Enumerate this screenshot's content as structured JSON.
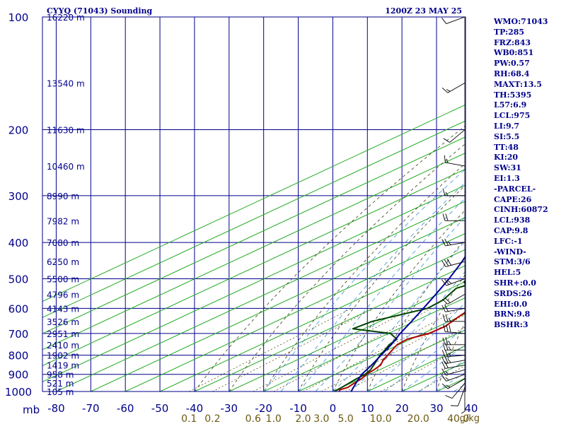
{
  "title_left": "CYYQ (71043) Sounding",
  "title_right": "1200Z 23 MAY 25",
  "chart_data": {
    "type": "skew-t",
    "y_axis": {
      "label": "mb",
      "scale": "log",
      "range": [
        1000,
        100
      ],
      "ticks": [
        "100",
        "200",
        "300",
        "400",
        "500",
        "600",
        "700",
        "800",
        "900",
        "1000"
      ]
    },
    "x_axis": {
      "label": "",
      "range": [
        -80,
        40
      ],
      "ticks": [
        "-80",
        "-70",
        "-60",
        "-50",
        "-40",
        "-30",
        "-20",
        "-10",
        "0",
        "10",
        "20",
        "30",
        "40"
      ]
    },
    "mixing_ratio_labels": [
      "0.1",
      "0.2",
      "0.6",
      "1.0",
      "2.0",
      "3.0",
      "5.0",
      "10.0",
      "20.0",
      "40.0"
    ],
    "mixing_ratio_unit": "g/kg",
    "height_labels": [
      {
        "p": 100,
        "label": "16220 m"
      },
      {
        "p": 150,
        "label": "13540 m"
      },
      {
        "p": 200,
        "label": "11630 m"
      },
      {
        "p": 250,
        "label": "10460 m"
      },
      {
        "p": 300,
        "label": "8990 m"
      },
      {
        "p": 350,
        "label": "7982 m"
      },
      {
        "p": 400,
        "label": "7080 m"
      },
      {
        "p": 450,
        "label": "6250 m"
      },
      {
        "p": 500,
        "label": "5500 m"
      },
      {
        "p": 550,
        "label": "4796 m"
      },
      {
        "p": 600,
        "label": "4143 m"
      },
      {
        "p": 650,
        "label": "3526 m"
      },
      {
        "p": 700,
        "label": "2951 m"
      },
      {
        "p": 750,
        "label": "2410 m"
      },
      {
        "p": 800,
        "label": "1902 m"
      },
      {
        "p": 850,
        "label": "1419 m"
      },
      {
        "p": 900,
        "label": "958 m"
      },
      {
        "p": 950,
        "label": "521 m"
      },
      {
        "p": 1000,
        "label": "105 m"
      }
    ],
    "series": [
      {
        "key": "temperature",
        "color": "#b00000",
        "points": [
          [
            1000,
            1.8
          ],
          [
            990,
            1.0
          ],
          [
            975,
            1.8
          ],
          [
            950,
            1.0
          ],
          [
            925,
            0.4
          ],
          [
            900,
            -0.9
          ],
          [
            875,
            -1.6
          ],
          [
            850,
            -2.6
          ],
          [
            825,
            -4.9
          ],
          [
            800,
            -6.7
          ],
          [
            775,
            -8.6
          ],
          [
            750,
            -10.5
          ],
          [
            725,
            -11.0
          ],
          [
            700,
            -8.3
          ],
          [
            670,
            -8.0
          ],
          [
            630,
            -10.2
          ],
          [
            600,
            -11.7
          ],
          [
            550,
            -15.0
          ],
          [
            500,
            -19.4
          ],
          [
            450,
            -24.1
          ],
          [
            400,
            -29.7
          ],
          [
            350,
            -36.3
          ],
          [
            300,
            -44.8
          ],
          [
            275,
            -48.2
          ],
          [
            260,
            -48.2
          ],
          [
            240,
            -49.6
          ],
          [
            225,
            -50.5
          ],
          [
            200,
            -51.7
          ],
          [
            180,
            -52.0
          ],
          [
            160,
            -47.9
          ],
          [
            100,
            -52.7
          ]
        ]
      },
      {
        "key": "dewpoint",
        "color": "#004400",
        "points": [
          [
            1000,
            0.5
          ],
          [
            975,
            0.0
          ],
          [
            950,
            -0.5
          ],
          [
            925,
            -1.1
          ],
          [
            900,
            -1.3
          ],
          [
            875,
            -2.6
          ],
          [
            850,
            -4.6
          ],
          [
            825,
            -6.7
          ],
          [
            800,
            -8.9
          ],
          [
            775,
            -10.7
          ],
          [
            750,
            -12.8
          ],
          [
            725,
            -14.0
          ],
          [
            700,
            -19.4
          ],
          [
            680,
            -33.2
          ],
          [
            650,
            -32.2
          ],
          [
            600,
            -24.3
          ],
          [
            570,
            -25.0
          ],
          [
            530,
            -28.5
          ],
          [
            520,
            -27.5
          ],
          [
            510,
            -30.2
          ],
          [
            500,
            -31.1
          ],
          [
            480,
            -33.0
          ],
          [
            455,
            -33.6
          ],
          [
            430,
            -41.7
          ],
          [
            400,
            -41.0
          ],
          [
            375,
            -45.5
          ],
          [
            350,
            -47.4
          ],
          [
            325,
            -50.1
          ],
          [
            300,
            -53.7
          ],
          [
            275,
            -57.5
          ],
          [
            265,
            -58.2
          ],
          [
            255,
            -63.1
          ],
          [
            240,
            -64.9
          ],
          [
            225,
            -70.0
          ],
          [
            200,
            -79.0
          ]
        ]
      },
      {
        "key": "parcel",
        "color": "#000099",
        "points": [
          [
            1000,
            5.3
          ],
          [
            950,
            1.5
          ],
          [
            900,
            -2.3
          ],
          [
            850,
            -5.2
          ],
          [
            800,
            -8.6
          ],
          [
            750,
            -12.2
          ],
          [
            700,
            -16.6
          ],
          [
            650,
            -20.8
          ],
          [
            600,
            -25.5
          ],
          [
            550,
            -30.7
          ],
          [
            500,
            -36.5
          ],
          [
            450,
            -43.4
          ],
          [
            400,
            -51.7
          ],
          [
            350,
            -61.1
          ],
          [
            300,
            -71.7
          ],
          [
            250,
            -84.0
          ]
        ]
      }
    ],
    "wind_barbs": [
      {
        "p": 1000,
        "dir": 180,
        "spd": 5
      },
      {
        "p": 975,
        "dir": 200,
        "spd": 10
      },
      {
        "p": 950,
        "dir": 220,
        "spd": 10
      },
      {
        "p": 925,
        "dir": 240,
        "spd": 15
      },
      {
        "p": 900,
        "dir": 250,
        "spd": 15
      },
      {
        "p": 875,
        "dir": 255,
        "spd": 15
      },
      {
        "p": 850,
        "dir": 260,
        "spd": 20
      },
      {
        "p": 825,
        "dir": 260,
        "spd": 25
      },
      {
        "p": 800,
        "dir": 265,
        "spd": 25
      },
      {
        "p": 775,
        "dir": 270,
        "spd": 25
      },
      {
        "p": 750,
        "dir": 270,
        "spd": 25
      },
      {
        "p": 700,
        "dir": 275,
        "spd": 30
      },
      {
        "p": 650,
        "dir": 270,
        "spd": 25
      },
      {
        "p": 600,
        "dir": 260,
        "spd": 20
      },
      {
        "p": 550,
        "dir": 240,
        "spd": 20
      },
      {
        "p": 500,
        "dir": 250,
        "spd": 25
      },
      {
        "p": 450,
        "dir": 255,
        "spd": 30
      },
      {
        "p": 400,
        "dir": 260,
        "spd": 25
      },
      {
        "p": 350,
        "dir": 270,
        "spd": 20
      },
      {
        "p": 300,
        "dir": 270,
        "spd": 15
      },
      {
        "p": 250,
        "dir": 280,
        "spd": 15
      },
      {
        "p": 200,
        "dir": 230,
        "spd": 10
      },
      {
        "p": 150,
        "dir": 240,
        "spd": 15
      },
      {
        "p": 100,
        "dir": 250,
        "spd": 10
      }
    ]
  },
  "indices": [
    "WMO:71043",
    "TP:285",
    "FRZ:843",
    "WB0:851",
    "PW:0.57",
    "RH:68.4",
    "MAXT:13.5",
    "TH:5395",
    "L57:6.9",
    "LCL:975",
    "LI:9.7",
    "SI:5.5",
    "TT:48",
    "KI:20",
    "SW:31",
    "EI:1.3",
    "-PARCEL-",
    "CAPE:26",
    "CINH:60872",
    "LCL:938",
    "CAP:9.8",
    "LFC:-1",
    "-WIND-",
    "STM:3/6",
    "HEL:5",
    "SHR+:0.0",
    "SRDS:26",
    "EHI:0.0",
    "BRN:9.8",
    "BSHR:3"
  ]
}
